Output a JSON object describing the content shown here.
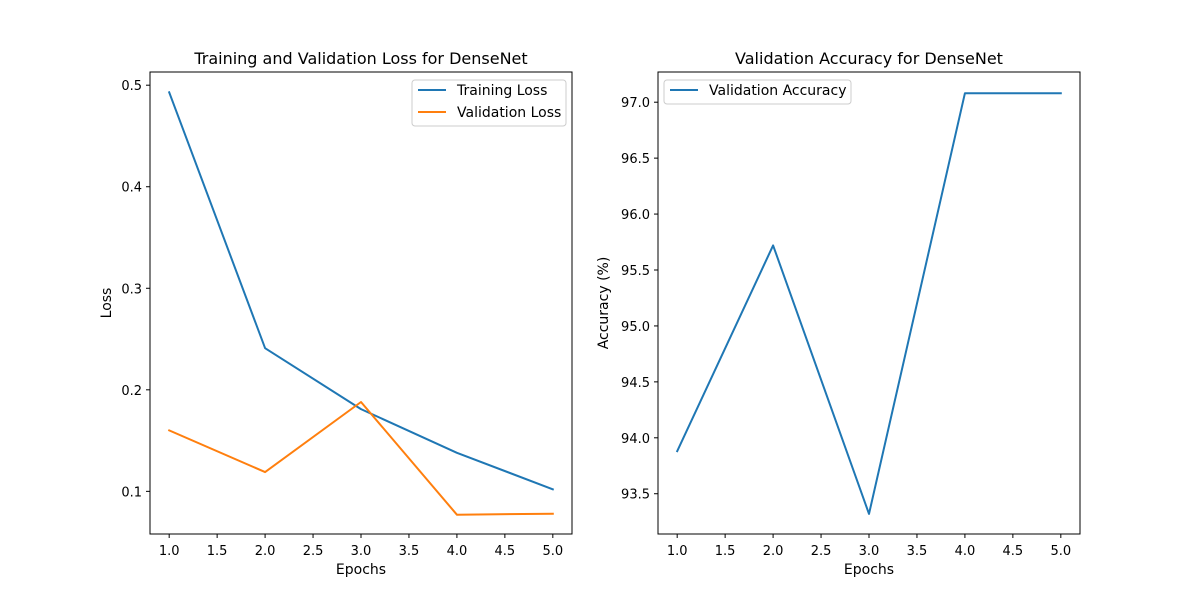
{
  "chart_data": [
    {
      "type": "line",
      "title": "Training and Validation Loss for DenseNet",
      "xlabel": "Epochs",
      "ylabel": "Loss",
      "xlim": [
        0.8,
        5.2
      ],
      "ylim": [
        0.058,
        0.513
      ],
      "xticks": [
        1.0,
        1.5,
        2.0,
        2.5,
        3.0,
        3.5,
        4.0,
        4.5,
        5.0
      ],
      "xtick_labels": [
        "1.0",
        "1.5",
        "2.0",
        "2.5",
        "3.0",
        "3.5",
        "4.0",
        "4.5",
        "5.0"
      ],
      "yticks": [
        0.1,
        0.2,
        0.3,
        0.4,
        0.5
      ],
      "ytick_labels": [
        "0.1",
        "0.2",
        "0.3",
        "0.4",
        "0.5"
      ],
      "x": [
        1,
        2,
        3,
        4,
        5
      ],
      "series": [
        {
          "name": "Training Loss",
          "color": "#1f77b4",
          "values": [
            0.493,
            0.241,
            0.181,
            0.138,
            0.102
          ]
        },
        {
          "name": "Validation Loss",
          "color": "#ff7f0e",
          "values": [
            0.16,
            0.119,
            0.188,
            0.077,
            0.078
          ]
        }
      ],
      "legend": "top-right",
      "grid": false
    },
    {
      "type": "line",
      "title": "Validation Accuracy for DenseNet",
      "xlabel": "Epochs",
      "ylabel": "Accuracy (%)",
      "xlim": [
        0.8,
        5.2
      ],
      "ylim": [
        93.14,
        97.27
      ],
      "xticks": [
        1.0,
        1.5,
        2.0,
        2.5,
        3.0,
        3.5,
        4.0,
        4.5,
        5.0
      ],
      "xtick_labels": [
        "1.0",
        "1.5",
        "2.0",
        "2.5",
        "3.0",
        "3.5",
        "4.0",
        "4.5",
        "5.0"
      ],
      "yticks": [
        93.5,
        94.0,
        94.5,
        95.0,
        95.5,
        96.0,
        96.5,
        97.0
      ],
      "ytick_labels": [
        "93.5",
        "94.0",
        "94.5",
        "95.0",
        "95.5",
        "96.0",
        "96.5",
        "97.0"
      ],
      "x": [
        1,
        2,
        3,
        4,
        5
      ],
      "series": [
        {
          "name": "Validation Accuracy",
          "color": "#1f77b4",
          "values": [
            93.88,
            95.72,
            93.32,
            97.08,
            97.08
          ]
        }
      ],
      "legend": "top-left",
      "grid": false
    }
  ]
}
